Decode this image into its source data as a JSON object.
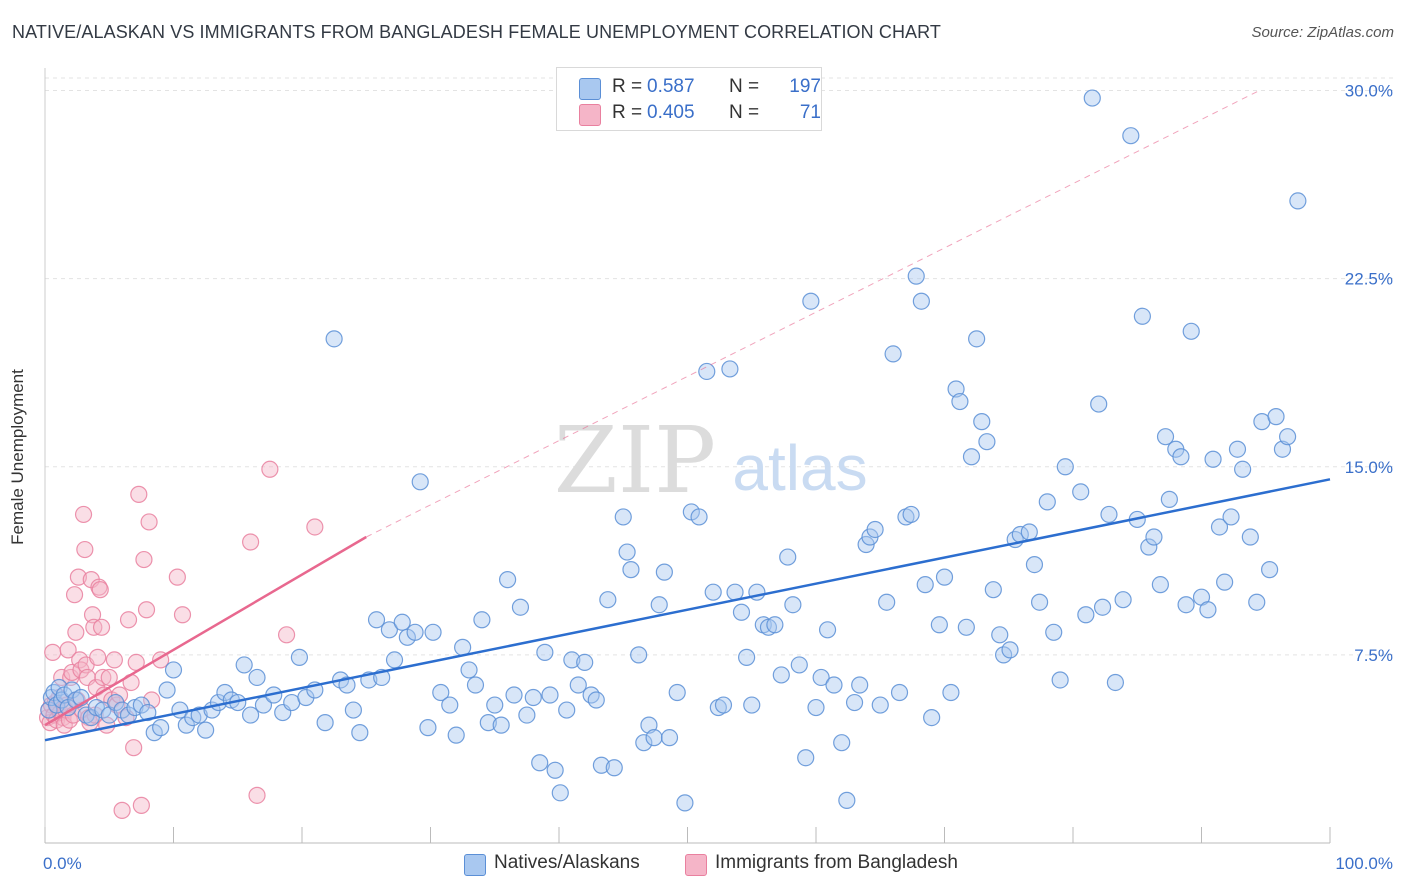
{
  "header": {
    "title": "NATIVE/ALASKAN VS IMMIGRANTS FROM BANGLADESH FEMALE UNEMPLOYMENT CORRELATION CHART",
    "source": "Source: ZipAtlas.com"
  },
  "watermark": {
    "zip": "ZIP",
    "atlas": "atlas"
  },
  "legend": {
    "series": [
      {
        "r_label": "R =",
        "r_value": "0.587",
        "n_label": "N =",
        "n_value": "197"
      },
      {
        "r_label": "R =",
        "r_value": "0.405",
        "n_label": "N =",
        "n_value": "71"
      }
    ]
  },
  "colors": {
    "blue_fill": "#a9c8f0",
    "blue_stroke": "#5b8fd6",
    "blue_line": "#2c6ecf",
    "pink_fill": "#f5b5c8",
    "pink_stroke": "#e9809f",
    "pink_line": "#e8688f",
    "grid": "#e3e3e3",
    "tick_label": "#3a6fc9"
  },
  "chart_data": {
    "type": "scatter",
    "title": "NATIVE/ALASKAN VS IMMIGRANTS FROM BANGLADESH FEMALE UNEMPLOYMENT CORRELATION CHART",
    "xlabel": "",
    "ylabel": "Female Unemployment",
    "xlim": [
      0,
      100
    ],
    "ylim": [
      0,
      30.5
    ],
    "x_tick_labels": [
      "0.0%",
      "100.0%"
    ],
    "y_ticks": [
      7.5,
      15.0,
      22.5,
      30.0
    ],
    "y_tick_labels": [
      "7.5%",
      "15.0%",
      "22.5%",
      "30.0%"
    ],
    "grid": true,
    "legend_position": "top-center",
    "series": [
      {
        "name": "Natives/Alaskans",
        "color": "#a9c8f0",
        "trend": {
          "x": [
            0,
            100
          ],
          "y": [
            4.1,
            14.5
          ]
        },
        "points": [
          [
            0.3,
            5.3
          ],
          [
            0.5,
            5.8
          ],
          [
            0.7,
            6.0
          ],
          [
            0.9,
            5.5
          ],
          [
            1.1,
            6.2
          ],
          [
            1.3,
            5.7
          ],
          [
            1.5,
            5.9
          ],
          [
            1.8,
            5.4
          ],
          [
            2.1,
            6.1
          ],
          [
            2.4,
            5.7
          ],
          [
            2.8,
            5.8
          ],
          [
            3.2,
            5.1
          ],
          [
            3.6,
            5.0
          ],
          [
            4.0,
            5.4
          ],
          [
            4.5,
            5.3
          ],
          [
            5.0,
            5.1
          ],
          [
            5.5,
            5.6
          ],
          [
            6.0,
            5.3
          ],
          [
            6.5,
            5.1
          ],
          [
            7.0,
            5.4
          ],
          [
            7.5,
            5.5
          ],
          [
            8.0,
            5.2
          ],
          [
            8.5,
            4.4
          ],
          [
            9.0,
            4.6
          ],
          [
            9.5,
            6.1
          ],
          [
            10.0,
            6.9
          ],
          [
            10.5,
            5.3
          ],
          [
            11.0,
            4.7
          ],
          [
            11.5,
            5.0
          ],
          [
            12.0,
            5.1
          ],
          [
            12.5,
            4.5
          ],
          [
            13.0,
            5.3
          ],
          [
            13.5,
            5.6
          ],
          [
            14.0,
            6.0
          ],
          [
            14.5,
            5.7
          ],
          [
            15.0,
            5.6
          ],
          [
            15.5,
            7.1
          ],
          [
            16.0,
            5.1
          ],
          [
            16.5,
            6.6
          ],
          [
            17.0,
            5.5
          ],
          [
            17.8,
            5.9
          ],
          [
            18.5,
            5.2
          ],
          [
            19.2,
            5.6
          ],
          [
            19.8,
            7.4
          ],
          [
            20.3,
            5.8
          ],
          [
            21.0,
            6.1
          ],
          [
            21.8,
            4.8
          ],
          [
            22.5,
            20.1
          ],
          [
            23.0,
            6.5
          ],
          [
            23.5,
            6.3
          ],
          [
            24.0,
            5.3
          ],
          [
            24.5,
            4.4
          ],
          [
            25.2,
            6.5
          ],
          [
            25.8,
            8.9
          ],
          [
            26.2,
            6.6
          ],
          [
            26.8,
            8.5
          ],
          [
            27.2,
            7.3
          ],
          [
            27.8,
            8.8
          ],
          [
            28.2,
            8.2
          ],
          [
            28.8,
            8.4
          ],
          [
            29.2,
            14.4
          ],
          [
            29.8,
            4.6
          ],
          [
            30.2,
            8.4
          ],
          [
            30.8,
            6.0
          ],
          [
            31.5,
            5.5
          ],
          [
            32.0,
            4.3
          ],
          [
            32.5,
            7.8
          ],
          [
            33.0,
            6.9
          ],
          [
            33.5,
            6.3
          ],
          [
            34.0,
            8.9
          ],
          [
            34.5,
            4.8
          ],
          [
            35.0,
            5.5
          ],
          [
            35.5,
            4.7
          ],
          [
            36.0,
            10.5
          ],
          [
            36.5,
            5.9
          ],
          [
            37.0,
            9.4
          ],
          [
            37.5,
            5.1
          ],
          [
            38.0,
            5.8
          ],
          [
            38.5,
            3.2
          ],
          [
            38.9,
            7.6
          ],
          [
            39.3,
            5.9
          ],
          [
            39.7,
            2.9
          ],
          [
            40.1,
            2.0
          ],
          [
            40.6,
            5.3
          ],
          [
            41.0,
            7.3
          ],
          [
            41.5,
            6.3
          ],
          [
            42.0,
            7.2
          ],
          [
            42.5,
            5.9
          ],
          [
            42.9,
            5.7
          ],
          [
            43.3,
            3.1
          ],
          [
            43.8,
            9.7
          ],
          [
            44.3,
            3.0
          ],
          [
            45.0,
            13.0
          ],
          [
            45.3,
            11.6
          ],
          [
            45.6,
            10.9
          ],
          [
            46.2,
            7.5
          ],
          [
            46.6,
            4.0
          ],
          [
            47.0,
            4.7
          ],
          [
            47.4,
            4.2
          ],
          [
            47.8,
            9.5
          ],
          [
            48.2,
            10.8
          ],
          [
            48.6,
            4.2
          ],
          [
            49.2,
            6.0
          ],
          [
            49.8,
            1.6
          ],
          [
            50.3,
            13.2
          ],
          [
            50.9,
            13.0
          ],
          [
            51.5,
            18.8
          ],
          [
            52.0,
            10.0
          ],
          [
            52.4,
            5.4
          ],
          [
            52.8,
            5.5
          ],
          [
            53.3,
            18.9
          ],
          [
            53.7,
            10.0
          ],
          [
            54.2,
            9.2
          ],
          [
            54.6,
            7.4
          ],
          [
            55.0,
            5.5
          ],
          [
            55.4,
            10.0
          ],
          [
            55.9,
            8.7
          ],
          [
            56.3,
            8.6
          ],
          [
            56.8,
            8.7
          ],
          [
            57.3,
            6.7
          ],
          [
            57.8,
            11.4
          ],
          [
            58.2,
            9.5
          ],
          [
            58.7,
            7.1
          ],
          [
            59.2,
            3.4
          ],
          [
            59.6,
            21.6
          ],
          [
            60.0,
            5.4
          ],
          [
            60.4,
            6.6
          ],
          [
            60.9,
            8.5
          ],
          [
            61.4,
            6.3
          ],
          [
            62.0,
            4.0
          ],
          [
            62.4,
            1.7
          ],
          [
            63.0,
            5.6
          ],
          [
            63.4,
            6.3
          ],
          [
            63.9,
            11.9
          ],
          [
            64.2,
            12.2
          ],
          [
            64.6,
            12.5
          ],
          [
            65.0,
            5.5
          ],
          [
            65.5,
            9.6
          ],
          [
            66.0,
            19.5
          ],
          [
            66.5,
            6.0
          ],
          [
            67.0,
            13.0
          ],
          [
            67.4,
            13.1
          ],
          [
            67.8,
            22.6
          ],
          [
            68.2,
            21.6
          ],
          [
            68.5,
            10.3
          ],
          [
            69.0,
            5.0
          ],
          [
            69.6,
            8.7
          ],
          [
            70.0,
            10.6
          ],
          [
            70.5,
            6.0
          ],
          [
            70.9,
            18.1
          ],
          [
            71.2,
            17.6
          ],
          [
            71.7,
            8.6
          ],
          [
            72.1,
            15.4
          ],
          [
            72.5,
            20.1
          ],
          [
            72.9,
            16.8
          ],
          [
            73.3,
            16.0
          ],
          [
            73.8,
            10.1
          ],
          [
            74.3,
            8.3
          ],
          [
            74.6,
            7.5
          ],
          [
            75.1,
            7.7
          ],
          [
            75.5,
            12.1
          ],
          [
            75.9,
            12.3
          ],
          [
            76.6,
            12.4
          ],
          [
            77.0,
            11.1
          ],
          [
            77.4,
            9.6
          ],
          [
            78.0,
            13.6
          ],
          [
            78.5,
            8.4
          ],
          [
            79.0,
            6.5
          ],
          [
            79.4,
            15.0
          ],
          [
            80.6,
            14.0
          ],
          [
            81.0,
            9.1
          ],
          [
            81.5,
            29.7
          ],
          [
            82.0,
            17.5
          ],
          [
            82.3,
            9.4
          ],
          [
            82.8,
            13.1
          ],
          [
            83.3,
            6.4
          ],
          [
            83.9,
            9.7
          ],
          [
            84.5,
            28.2
          ],
          [
            85.0,
            12.9
          ],
          [
            85.4,
            21.0
          ],
          [
            85.9,
            11.8
          ],
          [
            86.3,
            12.2
          ],
          [
            86.8,
            10.3
          ],
          [
            87.2,
            16.2
          ],
          [
            87.5,
            13.7
          ],
          [
            88.0,
            15.7
          ],
          [
            88.4,
            15.4
          ],
          [
            88.8,
            9.5
          ],
          [
            89.2,
            20.4
          ],
          [
            90.0,
            9.8
          ],
          [
            90.5,
            9.3
          ],
          [
            90.9,
            15.3
          ],
          [
            91.4,
            12.6
          ],
          [
            91.8,
            10.4
          ],
          [
            92.3,
            13.0
          ],
          [
            92.8,
            15.7
          ],
          [
            93.2,
            14.9
          ],
          [
            93.8,
            12.2
          ],
          [
            94.3,
            9.6
          ],
          [
            94.7,
            16.8
          ],
          [
            95.3,
            10.9
          ],
          [
            95.8,
            17.0
          ],
          [
            96.3,
            15.7
          ],
          [
            96.7,
            16.2
          ],
          [
            97.5,
            25.6
          ]
        ]
      },
      {
        "name": "Immigrants from Bangladesh",
        "color": "#f5b5c8",
        "trend": {
          "x": [
            0,
            25
          ],
          "y": [
            4.7,
            12.2
          ]
        },
        "trend_extension": {
          "x": [
            25,
            94.5
          ],
          "y": [
            12.2,
            30.0
          ]
        },
        "points": [
          [
            0.2,
            5.0
          ],
          [
            0.3,
            5.3
          ],
          [
            0.4,
            4.8
          ],
          [
            0.5,
            5.5
          ],
          [
            0.6,
            7.6
          ],
          [
            0.7,
            5.1
          ],
          [
            0.8,
            5.6
          ],
          [
            0.9,
            4.9
          ],
          [
            1.0,
            5.4
          ],
          [
            1.1,
            5.8
          ],
          [
            1.2,
            5.2
          ],
          [
            1.3,
            6.6
          ],
          [
            1.4,
            5.0
          ],
          [
            1.5,
            4.7
          ],
          [
            1.6,
            5.3
          ],
          [
            1.7,
            5.5
          ],
          [
            1.8,
            7.7
          ],
          [
            1.9,
            4.9
          ],
          [
            2.0,
            6.6
          ],
          [
            2.1,
            6.8
          ],
          [
            2.2,
            5.1
          ],
          [
            2.3,
            9.9
          ],
          [
            2.4,
            8.4
          ],
          [
            2.5,
            5.7
          ],
          [
            2.6,
            10.6
          ],
          [
            2.7,
            7.3
          ],
          [
            2.8,
            6.9
          ],
          [
            2.9,
            5.3
          ],
          [
            3.0,
            13.1
          ],
          [
            3.1,
            11.7
          ],
          [
            3.2,
            7.1
          ],
          [
            3.3,
            6.6
          ],
          [
            3.4,
            5.0
          ],
          [
            3.5,
            4.8
          ],
          [
            3.6,
            10.5
          ],
          [
            3.7,
            9.1
          ],
          [
            3.8,
            8.6
          ],
          [
            3.9,
            5.1
          ],
          [
            4.0,
            6.2
          ],
          [
            4.1,
            7.4
          ],
          [
            4.2,
            10.2
          ],
          [
            4.3,
            10.1
          ],
          [
            4.4,
            8.6
          ],
          [
            4.5,
            6.6
          ],
          [
            4.6,
            5.9
          ],
          [
            4.8,
            4.7
          ],
          [
            5.0,
            6.6
          ],
          [
            5.2,
            5.7
          ],
          [
            5.4,
            7.3
          ],
          [
            5.6,
            5.5
          ],
          [
            5.8,
            5.9
          ],
          [
            6.0,
            1.3
          ],
          [
            6.3,
            5.0
          ],
          [
            6.5,
            8.9
          ],
          [
            6.7,
            6.4
          ],
          [
            6.9,
            3.8
          ],
          [
            7.1,
            7.2
          ],
          [
            7.3,
            13.9
          ],
          [
            7.5,
            1.5
          ],
          [
            7.7,
            11.3
          ],
          [
            7.9,
            9.3
          ],
          [
            8.1,
            12.8
          ],
          [
            8.3,
            5.7
          ],
          [
            9.0,
            7.3
          ],
          [
            10.3,
            10.6
          ],
          [
            10.7,
            9.1
          ],
          [
            16.0,
            12.0
          ],
          [
            16.5,
            1.9
          ],
          [
            17.5,
            14.9
          ],
          [
            18.8,
            8.3
          ],
          [
            21.0,
            12.6
          ]
        ]
      }
    ]
  }
}
